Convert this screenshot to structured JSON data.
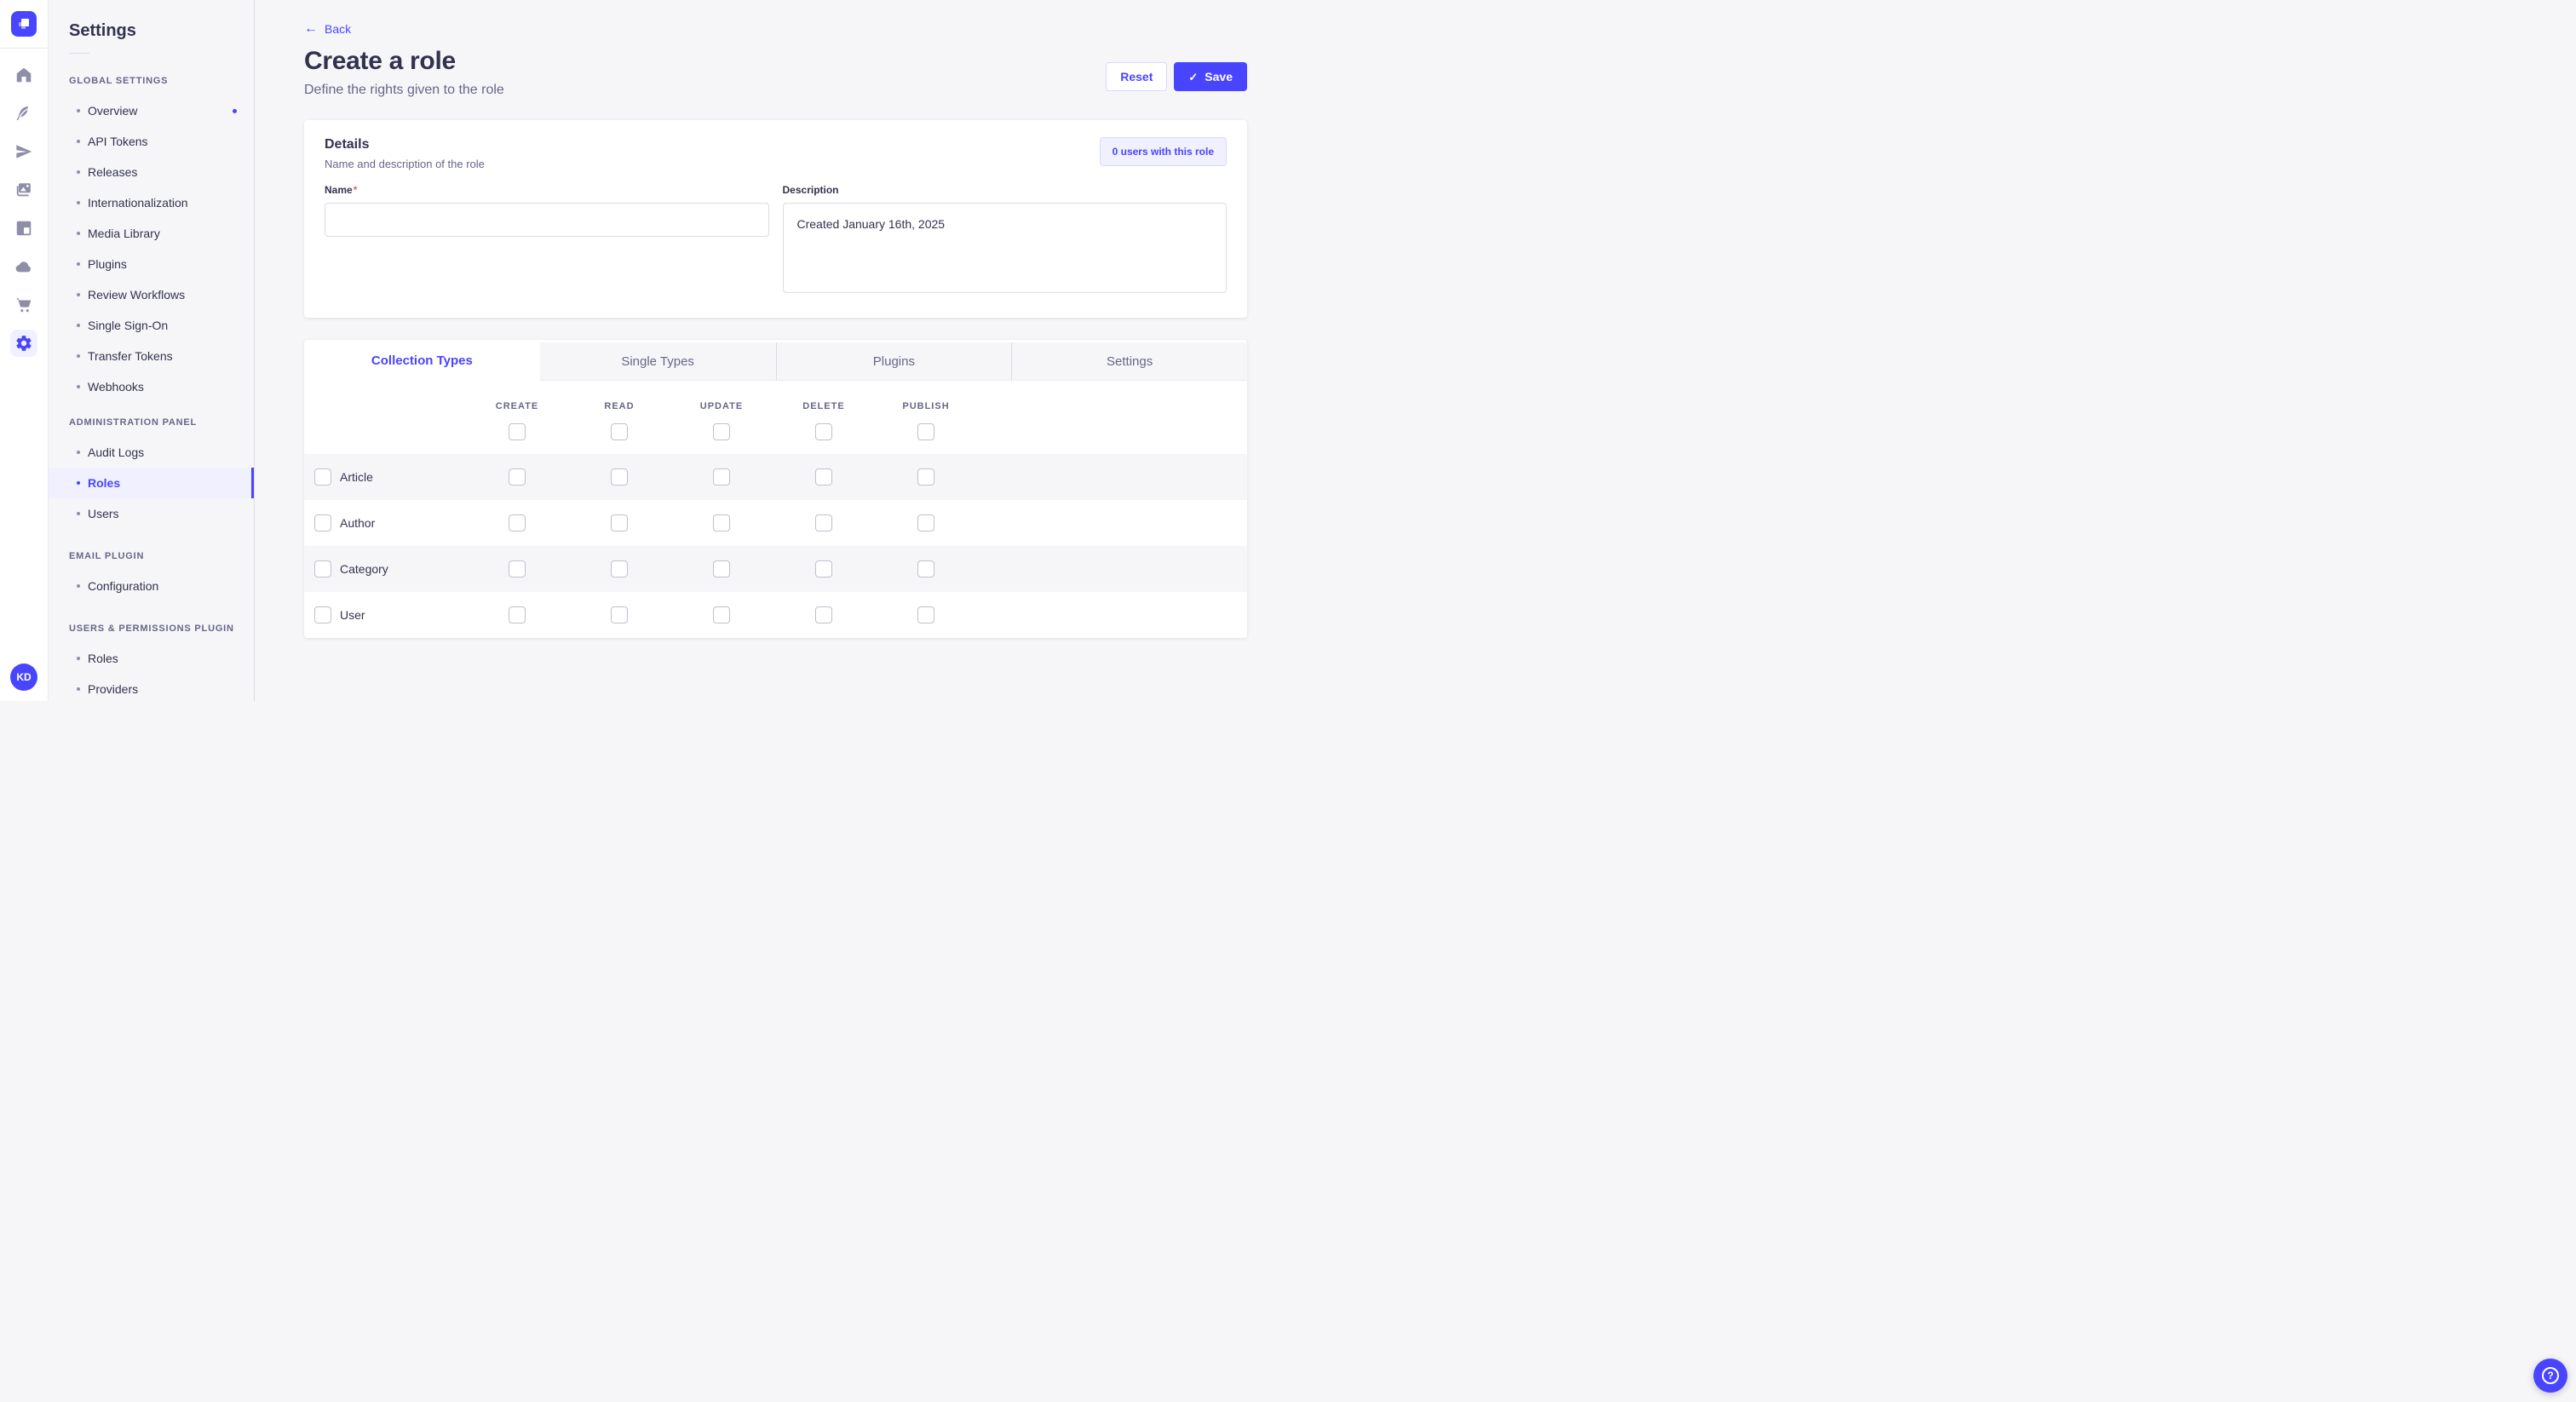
{
  "colors": {
    "primary": "#4945ff",
    "primary_light": "#f0f0ff",
    "primary_border": "#d9d8ff",
    "background": "#f6f6f9",
    "required_mark": "#ee5e52"
  },
  "rail": {
    "logo_icon": "strapi-logo",
    "icons": [
      "home-icon",
      "content-icon",
      "send-icon",
      "media-library-icon",
      "layout-icon",
      "cloud-icon",
      "marketplace-icon",
      "settings-gear-icon"
    ],
    "active_icon": "settings-gear-icon",
    "avatar_initials": "KD"
  },
  "sidebar": {
    "title": "Settings",
    "sections": [
      {
        "label": "GLOBAL SETTINGS",
        "items": [
          {
            "label": "Overview",
            "notification": true
          },
          {
            "label": "API Tokens"
          },
          {
            "label": "Releases"
          },
          {
            "label": "Internationalization"
          },
          {
            "label": "Media Library"
          },
          {
            "label": "Plugins"
          },
          {
            "label": "Review Workflows"
          },
          {
            "label": "Single Sign-On"
          },
          {
            "label": "Transfer Tokens"
          },
          {
            "label": "Webhooks"
          }
        ]
      },
      {
        "label": "ADMINISTRATION PANEL",
        "items": [
          {
            "label": "Audit Logs"
          },
          {
            "label": "Roles",
            "active": true
          },
          {
            "label": "Users"
          }
        ]
      },
      {
        "label": "EMAIL PLUGIN",
        "items": [
          {
            "label": "Configuration"
          }
        ]
      },
      {
        "label": "USERS & PERMISSIONS PLUGIN",
        "items": [
          {
            "label": "Roles"
          },
          {
            "label": "Providers"
          }
        ]
      }
    ]
  },
  "header": {
    "back_label": "Back",
    "title": "Create a role",
    "subtitle": "Define the rights given to the role",
    "reset_label": "Reset",
    "save_label": "Save",
    "save_check": "✓",
    "back_arrow": "←"
  },
  "details_card": {
    "title": "Details",
    "subtitle": "Name and description of the role",
    "users_badge": "0 users with this role",
    "name_label": "Name",
    "name_required_mark": "*",
    "name_value": "",
    "description_label": "Description",
    "description_value": "Created January 16th, 2025"
  },
  "permissions": {
    "tabs": [
      {
        "label": "Collection Types",
        "active": true
      },
      {
        "label": "Single Types"
      },
      {
        "label": "Plugins"
      },
      {
        "label": "Settings"
      }
    ],
    "columns": [
      "CREATE",
      "READ",
      "UPDATE",
      "DELETE",
      "PUBLISH"
    ],
    "column_select_all": [
      false,
      false,
      false,
      false,
      false
    ],
    "rows": [
      {
        "label": "Article",
        "selected": false,
        "checked": [
          false,
          false,
          false,
          false,
          false
        ]
      },
      {
        "label": "Author",
        "selected": false,
        "checked": [
          false,
          false,
          false,
          false,
          false
        ]
      },
      {
        "label": "Category",
        "selected": false,
        "checked": [
          false,
          false,
          false,
          false,
          false
        ]
      },
      {
        "label": "User",
        "selected": false,
        "checked": [
          false,
          false,
          false,
          false,
          false
        ]
      }
    ]
  },
  "fab": {
    "icon": "help-icon"
  }
}
